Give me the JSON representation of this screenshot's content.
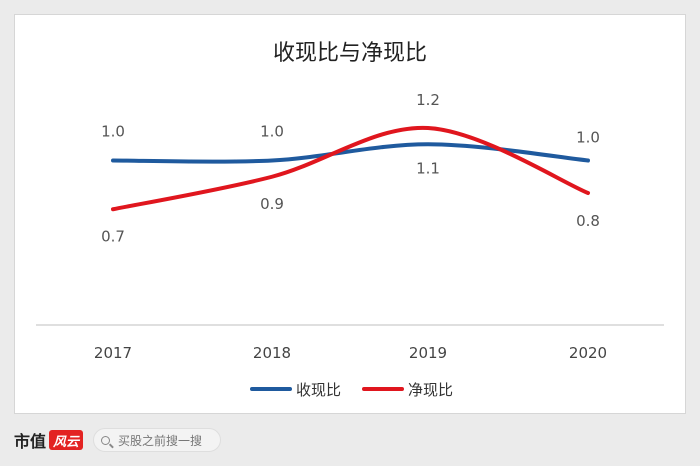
{
  "chart_data": {
    "type": "line",
    "title": "收现比与净现比",
    "categories": [
      "2017",
      "2018",
      "2019",
      "2020"
    ],
    "series": [
      {
        "name": "收现比",
        "values": [
          1.0,
          1.0,
          1.1,
          1.0
        ],
        "color": "#1f5a9e"
      },
      {
        "name": "净现比",
        "values": [
          0.7,
          0.9,
          1.2,
          0.8
        ],
        "color": "#e0161e"
      }
    ],
    "ylim": [
      0,
      1.5
    ],
    "grid": false,
    "legend_position": "bottom-center"
  },
  "footer": {
    "brand": "市值",
    "brand_mark": "风云",
    "search_placeholder": "买股之前搜一搜"
  },
  "colors": {
    "accent": "#e32322",
    "axis": "#bfbfbf"
  }
}
